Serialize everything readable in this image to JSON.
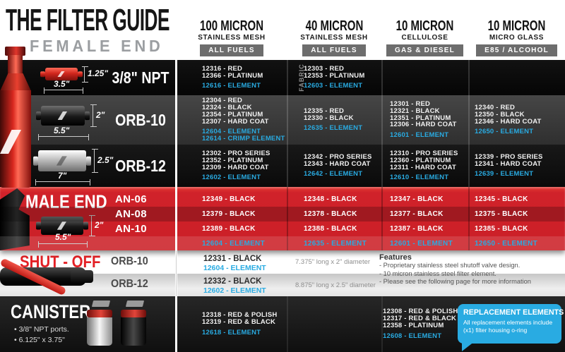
{
  "header": {
    "title": "THE FILTER GUIDE",
    "subtitle": "FEMALE END",
    "columns": [
      {
        "micron": "100 MICRON",
        "media": "STAINLESS MESH",
        "badge": "ALL FUELS"
      },
      {
        "micron": "40 MICRON",
        "media": "STAINLESS MESH",
        "badge": "ALL FUELS"
      },
      {
        "micron": "10 MICRON",
        "media": "CELLULOSE",
        "badge": "GAS & DIESEL"
      },
      {
        "micron": "10 MICRON",
        "media": "MICRO GLASS",
        "badge": "E85 / ALCOHOL"
      }
    ]
  },
  "female": {
    "rows": [
      {
        "label": "3/8\" NPT",
        "dim_height": "1.25\"",
        "dim_length": "3.5\"",
        "note": "FABRIC",
        "cells": [
          {
            "parts": [
              "12316 - RED",
              "12366 - PLATINUM"
            ],
            "elements": [
              "12616 - ELEMENT"
            ]
          },
          {
            "parts": [
              "12303 - RED",
              "12353 - PLATINUM"
            ],
            "elements": [
              "12603 - ELEMENT"
            ]
          },
          {
            "parts": [],
            "elements": []
          },
          {
            "parts": [],
            "elements": []
          }
        ]
      },
      {
        "label": "ORB-10",
        "dim_height": "2\"",
        "dim_length": "5.5\"",
        "note": "",
        "cells": [
          {
            "parts": [
              "12304 - RED",
              "12324 - BLACK",
              "12354 - PLATINUM",
              "12307 - HARD COAT"
            ],
            "elements": [
              "12604 - ELEMENT",
              "12614 - CRIMP ELEMENT"
            ]
          },
          {
            "parts": [
              "12335 - RED",
              "12330 - BLACK"
            ],
            "elements": [
              "12635 - ELEMENT"
            ]
          },
          {
            "parts": [
              "12301 - RED",
              "12321 - BLACK",
              "12351 - PLATINUM",
              "12306 - HARD COAT"
            ],
            "elements": [
              "12601 - ELEMENT"
            ]
          },
          {
            "parts": [
              "12340 - RED",
              "12350 - BLACK",
              "12346 - HARD COAT"
            ],
            "elements": [
              "12650 - ELEMENT"
            ]
          }
        ]
      },
      {
        "label": "ORB-12",
        "dim_height": "2.5\"",
        "dim_length": "7\"",
        "note": "",
        "cells": [
          {
            "parts": [
              "12302 - PRO SERIES",
              "12352 - PLATINUM",
              "12309 - HARD COAT"
            ],
            "elements": [
              "12602 - ELEMENT"
            ]
          },
          {
            "parts": [
              "12342 - PRO SERIES",
              "12343 - HARD COAT"
            ],
            "elements": [
              "12642 - ELEMENT"
            ]
          },
          {
            "parts": [
              "12310 - PRO SERIES",
              "12360 - PLATINUM",
              "12311 - HARD COAT"
            ],
            "elements": [
              "12610 - ELEMENT"
            ]
          },
          {
            "parts": [
              "12339 - PRO SERIES",
              "12341 - HARD COAT"
            ],
            "elements": [
              "12639 - ELEMENT"
            ]
          }
        ]
      }
    ]
  },
  "male": {
    "title": "MALE END",
    "dim_height": "2\"",
    "dim_length": "5.5\"",
    "rows": [
      {
        "label": "AN-06",
        "cells": [
          "12349 - BLACK",
          "12348 - BLACK",
          "12347 - BLACK",
          "12345 - BLACK"
        ]
      },
      {
        "label": "AN-08",
        "cells": [
          "12379 - BLACK",
          "12378 - BLACK",
          "12377 - BLACK",
          "12375 - BLACK"
        ]
      },
      {
        "label": "AN-10",
        "cells": [
          "12389 - BLACK",
          "12388 - BLACK",
          "12387 - BLACK",
          "12385 - BLACK"
        ]
      },
      {
        "label": "",
        "cells": [
          "12604 - ELEMENT",
          "12635 - ELEMENT",
          "12601 - ELEMENT",
          "12650 - ELEMENT"
        ]
      }
    ]
  },
  "shutoff": {
    "title": "SHUT - OFF",
    "rows": [
      {
        "label": "ORB-10",
        "part": "12331 - BLACK",
        "element": "12604 - ELEMENT",
        "dimensions": "7.375\" long x 2\" diameter"
      },
      {
        "label": "ORB-12",
        "part": "12332 - BLACK",
        "element": "12602 - ELEMENT",
        "dimensions": "8.875\" long x 2.5\" diameter"
      }
    ],
    "features": {
      "title": "Features",
      "items": [
        "- Proprietary stainless steel shutoff valve design.",
        "- 10 micron stainless steel filter element.",
        "- Please see the following page for more information"
      ]
    }
  },
  "canister": {
    "title": "CANISTER",
    "bullets": [
      "• 3/8\" NPT ports.",
      "• 6.125\" x 3.75\""
    ],
    "cells": [
      {
        "parts": [
          "12318 - RED & POLISH",
          "12319 - RED & BLACK"
        ],
        "elements": [
          "12618 - ELEMENT"
        ]
      },
      {
        "parts": [],
        "elements": []
      },
      {
        "parts": [
          "12308 - RED & POLISH",
          "12317 - RED & BLACK",
          "12358 - PLATINUM"
        ],
        "elements": [
          "12608 - ELEMENT"
        ]
      }
    ],
    "replacement_note": {
      "title": "REPLACEMENT ELEMENTS",
      "body": "All replacement elements include (x1) filter housing o-ring"
    }
  },
  "colors": {
    "accent_blue": "#29ABE2",
    "brand_red": "#D0222A",
    "dark_red": "#A81B20",
    "badge_gray": "#6D6D6D"
  }
}
